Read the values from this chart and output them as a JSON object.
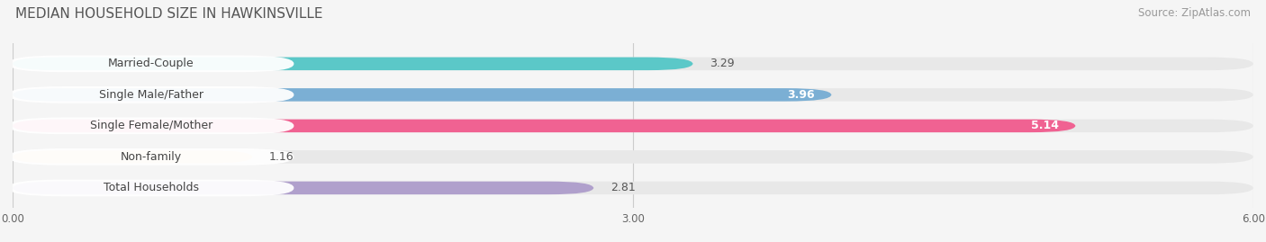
{
  "title": "MEDIAN HOUSEHOLD SIZE IN HAWKINSVILLE",
  "source": "Source: ZipAtlas.com",
  "categories": [
    "Married-Couple",
    "Single Male/Father",
    "Single Female/Mother",
    "Non-family",
    "Total Households"
  ],
  "values": [
    3.29,
    3.96,
    5.14,
    1.16,
    2.81
  ],
  "bar_colors": [
    "#5bc8c8",
    "#7bafd4",
    "#f06292",
    "#f5c99a",
    "#b0a0cc"
  ],
  "bar_bg_color": "#e8e8e8",
  "xlim": [
    0,
    6.0
  ],
  "xticks": [
    0.0,
    3.0,
    6.0
  ],
  "xtick_labels": [
    "0.00",
    "3.00",
    "6.00"
  ],
  "fig_bg_color": "#f5f5f5",
  "title_fontsize": 11,
  "source_fontsize": 8.5,
  "label_fontsize": 9,
  "value_fontsize": 9,
  "bar_height": 0.42,
  "value_inside_threshold": 3.5,
  "value_inside": [
    false,
    true,
    true,
    false,
    false
  ]
}
